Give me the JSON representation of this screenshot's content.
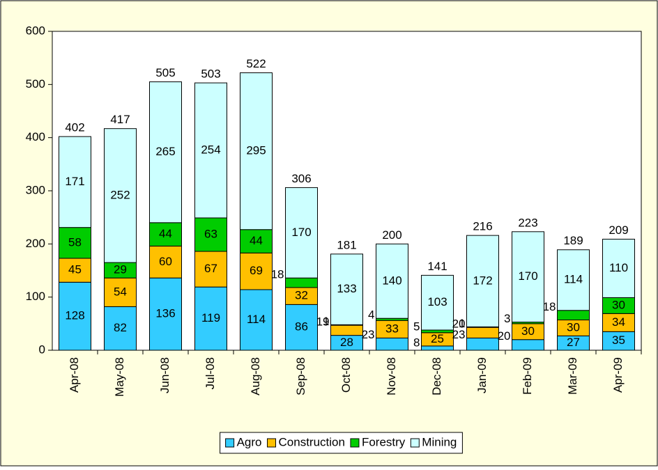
{
  "chart_data": {
    "type": "stacked_bar",
    "categories": [
      "Apr-08",
      "May-08",
      "Jun-08",
      "Jul-08",
      "Aug-08",
      "Sep-08",
      "Oct-08",
      "Nov-08",
      "Dec-08",
      "Jan-09",
      "Feb-09",
      "Mar-09",
      "Apr-09"
    ],
    "series": [
      {
        "name": "Agro",
        "color": "#33ccff",
        "values": [
          128,
          82,
          136,
          119,
          114,
          86,
          28,
          23,
          8,
          23,
          20,
          27,
          35
        ]
      },
      {
        "name": "Construction",
        "color": "#ffc000",
        "values": [
          45,
          54,
          60,
          67,
          69,
          32,
          19,
          33,
          25,
          20,
          30,
          30,
          34
        ]
      },
      {
        "name": "Forestry",
        "color": "#00cc00",
        "values": [
          58,
          29,
          44,
          63,
          44,
          18,
          1,
          4,
          5,
          1,
          3,
          18,
          30
        ]
      },
      {
        "name": "Mining",
        "color": "#ccffff",
        "values": [
          171,
          252,
          265,
          254,
          295,
          170,
          133,
          140,
          103,
          172,
          170,
          114,
          110
        ]
      }
    ],
    "totals": [
      402,
      417,
      505,
      503,
      522,
      306,
      181,
      200,
      141,
      216,
      223,
      189,
      209
    ],
    "ylim": [
      0,
      600
    ],
    "yticks": [
      0,
      100,
      200,
      300,
      400,
      500,
      600
    ],
    "legend": "bottom"
  }
}
